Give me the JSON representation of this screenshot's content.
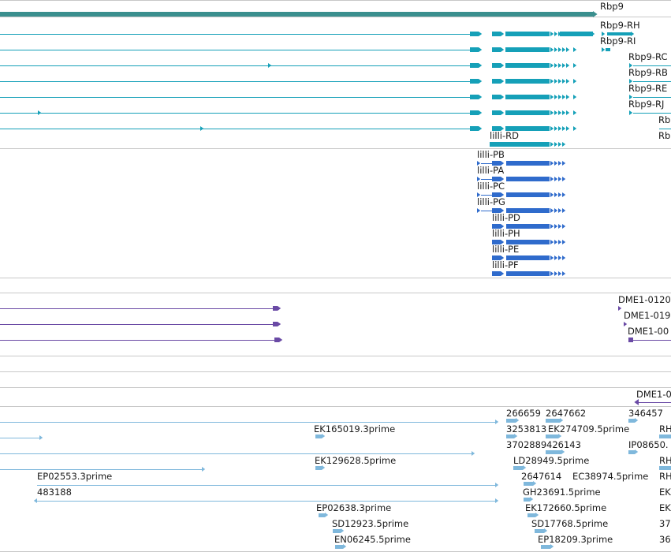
{
  "colors": {
    "gene": "#3a8f8e",
    "transcript": "#15a0b8",
    "lilli": "#2f6bcc",
    "dme": "#6a4aa5",
    "est": "#7fb8dc",
    "divider": "#c8c8c8",
    "track_line": "#6f6a83"
  },
  "labels": {
    "gene": "Rbp9",
    "rbp9_rh": "Rbp9-RH",
    "rbp9_ri": "Rbp9-RI",
    "rbp9_rc": "Rbp9-RC",
    "rbp9_rb": "Rbp9-RB",
    "rbp9_re": "Rbp9-RE",
    "rbp9_rj": "Rbp9-RJ",
    "rb1": "Rb",
    "rb2": "Rb",
    "lilli_rd": "lilli-RD",
    "lilli_pb": "lilli-PB",
    "lilli_pa": "lilli-PA",
    "lilli_pc": "lilli-PC",
    "lilli_pg": "lilli-PG",
    "lilli_pd": "lilli-PD",
    "lilli_ph": "lilli-PH",
    "lilli_pe": "lilli-PE",
    "lilli_pf": "lilli-PF",
    "dme1": "DME1-0120",
    "dme2": "DME1-019",
    "dme3": "DME1-00",
    "dme4": "DME1-0",
    "est_266659": "266659",
    "est_2647662": "2647662",
    "est_346457": "346457",
    "est_ek165019": "EK165019.3prime",
    "est_3253813": "3253813",
    "est_ek274709": "EK274709.5prime",
    "est_rh1": "RH",
    "est_3702889": "3702889",
    "est_426143": "426143",
    "est_ip08650": "IP08650.",
    "est_ek129628": "EK129628.5prime",
    "est_ld28949": "LD28949.5prime",
    "est_rh2": "RH",
    "est_ep02553": "EP02553.3prime",
    "est_2647614": "2647614",
    "est_ec38974": "EC38974.5prime",
    "est_rh3": "RH",
    "est_483188": "483188",
    "est_gh23691": "GH23691.5prime",
    "est_ek1": "EK",
    "est_ep02638": "EP02638.3prime",
    "est_ek172660": "EK172660.5prime",
    "est_ek2": "EK",
    "est_sd12923": "SD12923.5prime",
    "est_sd17768": "SD17768.5prime",
    "est_37": "37",
    "est_en06245": "EN06245.5prime",
    "est_ep18209": "EP18209.3prime",
    "est_36": "36"
  }
}
